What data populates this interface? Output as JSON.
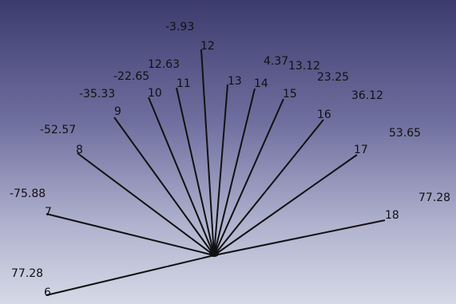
{
  "viewer": {
    "line_color": "#111111",
    "background_top": "#3c3b6e",
    "background_bottom": "#d6d9e6"
  },
  "rays": [
    {
      "id": "6",
      "angle_label": "77.28"
    },
    {
      "id": "7",
      "angle_label": "-75.88"
    },
    {
      "id": "8",
      "angle_label": "-52.57"
    },
    {
      "id": "9",
      "angle_label": "-35.33"
    },
    {
      "id": "10",
      "angle_label": "-22.65"
    },
    {
      "id": "11",
      "angle_label": "12.63"
    },
    {
      "id": "12",
      "angle_label": "-3.93"
    },
    {
      "id": "13",
      "angle_label": "4.37"
    },
    {
      "id": "14",
      "angle_label": "13.12"
    },
    {
      "id": "15",
      "angle_label": "23.25"
    },
    {
      "id": "16",
      "angle_label": "36.12"
    },
    {
      "id": "17",
      "angle_label": "53.65"
    },
    {
      "id": "18",
      "angle_label": "77.28"
    }
  ]
}
